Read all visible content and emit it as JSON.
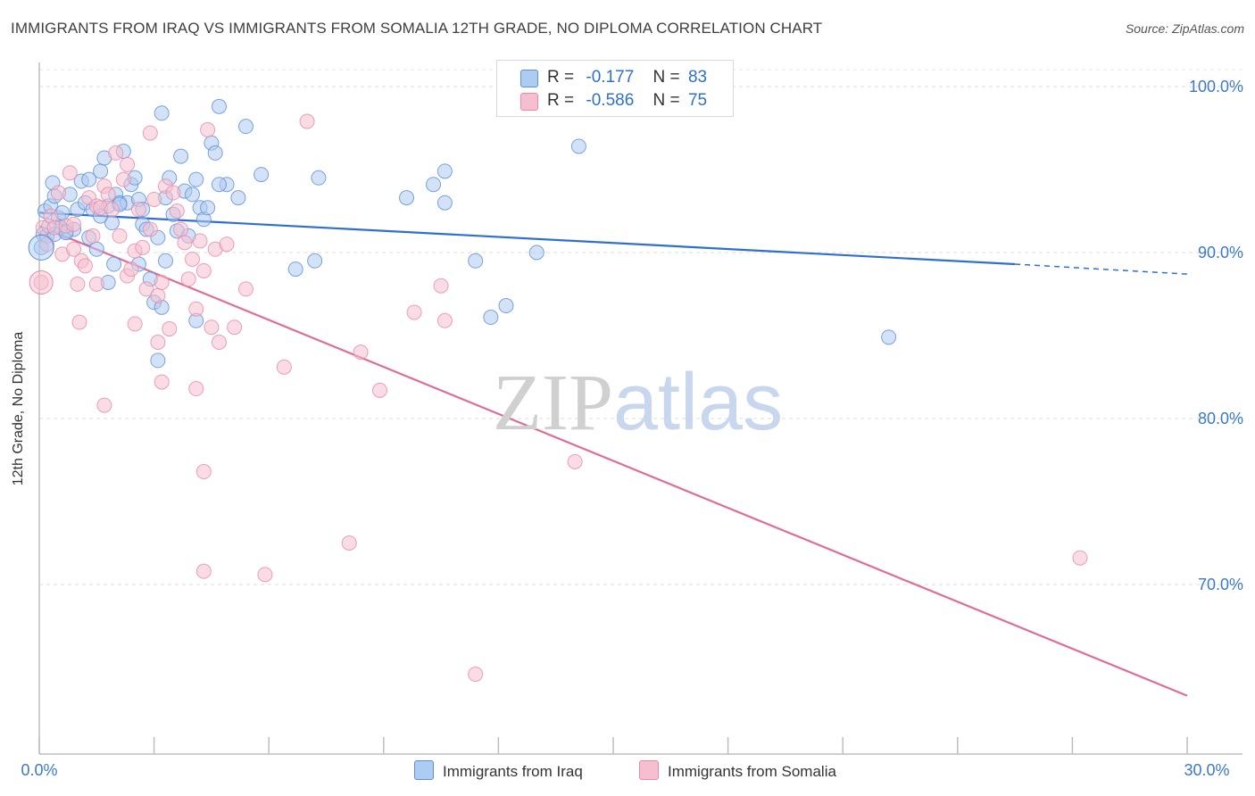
{
  "title": "IMMIGRANTS FROM IRAQ VS IMMIGRANTS FROM SOMALIA 12TH GRADE, NO DIPLOMA CORRELATION CHART",
  "source": "Source: ZipAtlas.com",
  "watermark": {
    "zip": "ZIP",
    "atlas": "atlas"
  },
  "legend": {
    "r_label": "R =",
    "n_label": "N =",
    "iraq": {
      "r": "-0.177",
      "n": "83"
    },
    "somalia": {
      "r": "-0.586",
      "n": "75"
    }
  },
  "chart_data": {
    "type": "scatter",
    "title": "IMMIGRANTS FROM IRAQ VS IMMIGRANTS FROM SOMALIA 12TH GRADE, NO DIPLOMA CORRELATION CHART",
    "xlabel": "",
    "ylabel": "12th Grade, No Diploma",
    "xlim": [
      0,
      30
    ],
    "ylim": [
      60,
      103
    ],
    "x_tick_labels": {
      "min": "0.0%",
      "max": "30.0%"
    },
    "y_ticks": [
      70,
      80,
      90,
      100
    ],
    "y_tick_labels": [
      "70.0%",
      "80.0%",
      "90.0%",
      "100.0%"
    ],
    "grid": true,
    "legend_placement": "top-center",
    "colors": {
      "iraq_fill": "#aecbf1",
      "iraq_stroke": "#5b8fd6",
      "iraq_line": "#2f6fd0",
      "somalia_fill": "#f6bfd0",
      "somalia_stroke": "#e889a8",
      "somalia_line": "#e06c98"
    },
    "series": [
      {
        "name": "Immigrants from Iraq",
        "r": -0.177,
        "n": 83,
        "trend": {
          "x0": 0,
          "y0": 92.4,
          "x1": 25.5,
          "y1": 89.3,
          "dash_to_x": 30,
          "dash_to_y": 88.7
        },
        "points": [
          [
            0.05,
            90.3
          ],
          [
            0.1,
            91.1
          ],
          [
            0.15,
            92.5
          ],
          [
            0.2,
            91.0
          ],
          [
            0.3,
            92.8
          ],
          [
            0.35,
            94.2
          ],
          [
            0.4,
            93.4
          ],
          [
            0.5,
            92.1
          ],
          [
            0.55,
            91.5
          ],
          [
            0.6,
            92.4
          ],
          [
            0.7,
            91.3
          ],
          [
            0.8,
            93.5
          ],
          [
            0.9,
            91.4
          ],
          [
            1.0,
            92.6
          ],
          [
            1.1,
            94.3
          ],
          [
            1.2,
            93.0
          ],
          [
            1.3,
            94.4
          ],
          [
            1.4,
            92.6
          ],
          [
            1.5,
            90.2
          ],
          [
            1.6,
            94.9
          ],
          [
            1.7,
            95.7
          ],
          [
            1.8,
            92.8
          ],
          [
            1.9,
            91.8
          ],
          [
            2.0,
            93.5
          ],
          [
            2.1,
            93.0
          ],
          [
            2.2,
            96.1
          ],
          [
            2.3,
            93.0
          ],
          [
            2.4,
            94.1
          ],
          [
            2.5,
            94.5
          ],
          [
            2.6,
            93.2
          ],
          [
            2.7,
            91.7
          ],
          [
            2.8,
            91.4
          ],
          [
            2.9,
            88.4
          ],
          [
            3.0,
            87.0
          ],
          [
            3.1,
            90.9
          ],
          [
            3.2,
            86.7
          ],
          [
            3.3,
            93.3
          ],
          [
            3.4,
            94.5
          ],
          [
            3.5,
            92.3
          ],
          [
            3.6,
            91.3
          ],
          [
            3.7,
            95.8
          ],
          [
            3.8,
            93.7
          ],
          [
            3.9,
            91.0
          ],
          [
            4.0,
            93.5
          ],
          [
            4.1,
            85.9
          ],
          [
            4.2,
            92.7
          ],
          [
            4.3,
            92.0
          ],
          [
            4.4,
            92.7
          ],
          [
            4.5,
            96.6
          ],
          [
            4.6,
            96.0
          ],
          [
            4.7,
            98.8
          ],
          [
            4.9,
            94.1
          ],
          [
            5.2,
            93.3
          ],
          [
            5.4,
            97.6
          ],
          [
            5.8,
            94.7
          ],
          [
            3.2,
            98.4
          ],
          [
            4.1,
            94.4
          ],
          [
            6.7,
            89.0
          ],
          [
            7.2,
            89.5
          ],
          [
            7.3,
            94.5
          ],
          [
            9.6,
            93.3
          ],
          [
            10.3,
            94.1
          ],
          [
            10.6,
            94.9
          ],
          [
            10.6,
            93.0
          ],
          [
            11.4,
            89.5
          ],
          [
            11.8,
            86.1
          ],
          [
            12.2,
            86.8
          ],
          [
            13.0,
            90.0
          ],
          [
            14.1,
            96.4
          ],
          [
            22.2,
            84.9
          ],
          [
            1.8,
            88.2
          ],
          [
            1.95,
            89.3
          ],
          [
            2.6,
            89.3
          ],
          [
            3.1,
            83.5
          ],
          [
            3.3,
            89.5
          ],
          [
            0.4,
            91.1
          ],
          [
            0.7,
            91.2
          ],
          [
            1.6,
            92.2
          ],
          [
            2.1,
            92.9
          ],
          [
            2.7,
            92.6
          ],
          [
            4.7,
            94.1
          ],
          [
            0.25,
            91.6
          ],
          [
            1.3,
            90.9
          ]
        ]
      },
      {
        "name": "Immigrants from Somalia",
        "r": -0.586,
        "n": 75,
        "trend": {
          "x0": 0,
          "y0": 91.6,
          "x1": 30,
          "y1": 63.3
        },
        "points": [
          [
            0.05,
            88.2
          ],
          [
            0.1,
            91.5
          ],
          [
            0.2,
            90.5
          ],
          [
            0.3,
            92.2
          ],
          [
            0.4,
            91.5
          ],
          [
            0.5,
            93.6
          ],
          [
            0.6,
            89.9
          ],
          [
            0.7,
            91.6
          ],
          [
            0.8,
            94.8
          ],
          [
            0.9,
            90.2
          ],
          [
            1.0,
            88.1
          ],
          [
            1.1,
            89.5
          ],
          [
            1.2,
            89.2
          ],
          [
            1.3,
            93.3
          ],
          [
            1.4,
            91.0
          ],
          [
            1.5,
            92.8
          ],
          [
            1.6,
            92.7
          ],
          [
            1.7,
            94.0
          ],
          [
            1.8,
            93.5
          ],
          [
            1.9,
            92.6
          ],
          [
            2.0,
            96.0
          ],
          [
            2.1,
            91.0
          ],
          [
            2.2,
            94.4
          ],
          [
            2.3,
            88.6
          ],
          [
            2.4,
            89.0
          ],
          [
            2.5,
            90.1
          ],
          [
            2.6,
            92.6
          ],
          [
            2.7,
            90.3
          ],
          [
            2.8,
            87.8
          ],
          [
            2.9,
            91.4
          ],
          [
            3.0,
            93.2
          ],
          [
            3.1,
            87.4
          ],
          [
            3.2,
            88.2
          ],
          [
            3.3,
            94.0
          ],
          [
            3.4,
            85.4
          ],
          [
            3.5,
            93.6
          ],
          [
            3.6,
            92.5
          ],
          [
            3.7,
            91.4
          ],
          [
            3.8,
            90.6
          ],
          [
            3.9,
            88.4
          ],
          [
            4.0,
            89.6
          ],
          [
            4.1,
            86.6
          ],
          [
            4.2,
            90.7
          ],
          [
            4.3,
            88.9
          ],
          [
            4.4,
            97.4
          ],
          [
            4.5,
            85.5
          ],
          [
            4.6,
            90.2
          ],
          [
            4.7,
            84.6
          ],
          [
            4.9,
            90.5
          ],
          [
            5.1,
            85.5
          ],
          [
            5.4,
            87.8
          ],
          [
            6.4,
            83.1
          ],
          [
            7.0,
            97.9
          ],
          [
            8.1,
            72.5
          ],
          [
            8.4,
            84.0
          ],
          [
            8.9,
            81.7
          ],
          [
            9.8,
            86.4
          ],
          [
            10.5,
            88.0
          ],
          [
            10.6,
            85.9
          ],
          [
            14.0,
            77.4
          ],
          [
            27.2,
            71.6
          ],
          [
            11.4,
            64.6
          ],
          [
            4.3,
            76.8
          ],
          [
            4.3,
            70.8
          ],
          [
            5.9,
            70.6
          ],
          [
            1.7,
            80.8
          ],
          [
            3.2,
            82.2
          ],
          [
            4.1,
            81.8
          ],
          [
            1.05,
            85.8
          ],
          [
            2.5,
            85.7
          ],
          [
            2.9,
            97.2
          ],
          [
            3.1,
            84.6
          ],
          [
            2.3,
            95.3
          ],
          [
            1.5,
            88.1
          ],
          [
            0.9,
            91.7
          ]
        ]
      }
    ]
  }
}
